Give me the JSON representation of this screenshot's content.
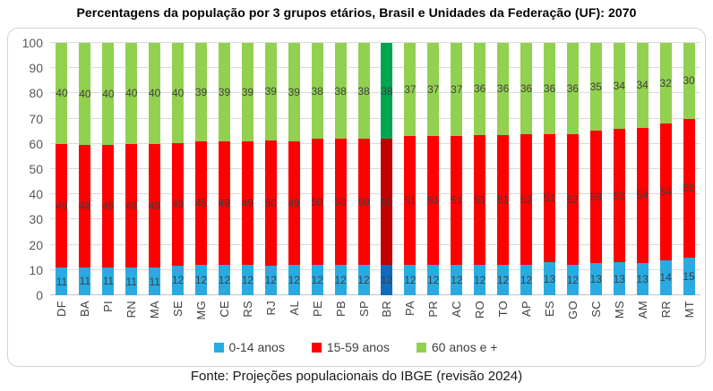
{
  "title": "Percentagens da população por 3 grupos etários, Brasil e Unidades da Federação (UF): 2070",
  "source_note": "Fonte: Projeções populacionais do IBGE (revisão 2024)",
  "colors": {
    "grid": "#dadada",
    "axis_tick_label": "#595959",
    "category_label": "#404040",
    "value_label": "#3f3f3f",
    "frame_border": "#d2d2d2"
  },
  "chart_data": {
    "type": "bar",
    "stacked": true,
    "title": "Percentagens da população por 3 grupos etários, Brasil e Unidades da Federação (UF): 2070",
    "xlabel": "",
    "ylabel": "",
    "ylim": [
      0,
      100
    ],
    "y_ticks": [
      0,
      10,
      20,
      30,
      40,
      50,
      60,
      70,
      80,
      90,
      100
    ],
    "grid": true,
    "legend_position": "bottom",
    "value_labels": true,
    "highlight_category": "BR",
    "categories": [
      "DF",
      "BA",
      "PI",
      "RN",
      "MA",
      "SE",
      "MG",
      "CE",
      "RS",
      "RJ",
      "AL",
      "PE",
      "PB",
      "SP",
      "BR",
      "PA",
      "PR",
      "AC",
      "RO",
      "TO",
      "AP",
      "ES",
      "GO",
      "SC",
      "MS",
      "AM",
      "RR",
      "MT"
    ],
    "series": [
      {
        "name": "0-14 anos",
        "color": "#29abe2",
        "highlight_color": "#0f6cbd",
        "values": [
          11,
          11,
          11,
          11,
          11,
          12,
          12,
          12,
          12,
          12,
          12,
          12,
          12,
          12,
          12,
          12,
          12,
          12,
          12,
          12,
          12,
          13,
          12,
          13,
          13,
          13,
          14,
          15
        ]
      },
      {
        "name": "15-59 anos",
        "color": "#fe0000",
        "highlight_color": "#c00000",
        "values": [
          49,
          48,
          48,
          49,
          49,
          49,
          49,
          49,
          49,
          50,
          49,
          50,
          50,
          50,
          50,
          51,
          51,
          51,
          51,
          51,
          52,
          51,
          52,
          53,
          53,
          54,
          54,
          55
        ]
      },
      {
        "name": "60 anos e +",
        "color": "#92d050",
        "highlight_color": "#00a550",
        "values": [
          40,
          40,
          40,
          40,
          40,
          40,
          39,
          39,
          39,
          39,
          39,
          38,
          38,
          38,
          38,
          37,
          37,
          37,
          36,
          36,
          36,
          36,
          36,
          35,
          34,
          34,
          32,
          30
        ]
      }
    ]
  }
}
